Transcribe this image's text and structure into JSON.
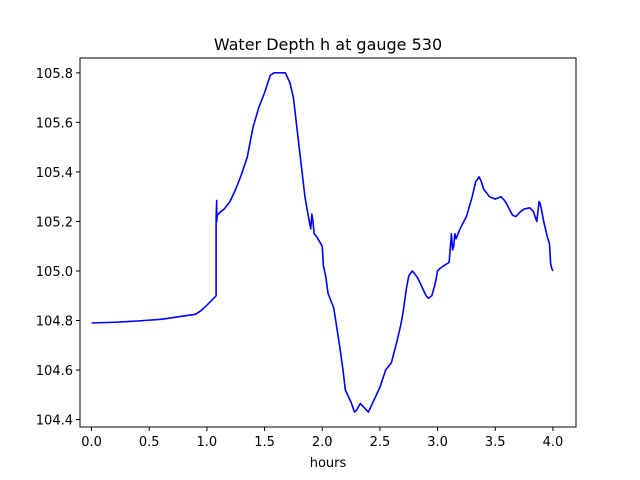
{
  "chart_data": {
    "type": "line",
    "title": "Water Depth h at gauge 530",
    "xlabel": "hours",
    "ylabel": "",
    "xlim": [
      -0.1,
      4.2
    ],
    "ylim": [
      104.37,
      105.86
    ],
    "grid": false,
    "legend": "none",
    "x_ticks": [
      0.0,
      0.5,
      1.0,
      1.5,
      2.0,
      2.5,
      3.0,
      3.5,
      4.0
    ],
    "x_tick_labels": [
      "0.0",
      "0.5",
      "1.0",
      "1.5",
      "2.0",
      "2.5",
      "3.0",
      "3.5",
      "4.0"
    ],
    "y_ticks": [
      104.4,
      104.6,
      104.8,
      105.0,
      105.2,
      105.4,
      105.6,
      105.8
    ],
    "y_tick_labels": [
      "104.4",
      "104.6",
      "104.8",
      "105.0",
      "105.2",
      "105.4",
      "105.6",
      "105.8"
    ],
    "series": [
      {
        "color": "#0000ff",
        "x": [
          0.0,
          0.2,
          0.4,
          0.6,
          0.65,
          0.75,
          0.9,
          0.95,
          1.0,
          1.05,
          1.08,
          1.08,
          1.085,
          1.085,
          1.09,
          1.12,
          1.15,
          1.2,
          1.25,
          1.3,
          1.35,
          1.4,
          1.45,
          1.5,
          1.55,
          1.58,
          1.62,
          1.68,
          1.72,
          1.75,
          1.8,
          1.85,
          1.88,
          1.9,
          1.91,
          1.92,
          1.93,
          1.95,
          2.0,
          2.01,
          2.03,
          2.05,
          2.1,
          2.15,
          2.18,
          2.2,
          2.25,
          2.28,
          2.3,
          2.33,
          2.35,
          2.38,
          2.4,
          2.42,
          2.45,
          2.48,
          2.5,
          2.55,
          2.6,
          2.65,
          2.68,
          2.7,
          2.73,
          2.75,
          2.78,
          2.8,
          2.83,
          2.85,
          2.9,
          2.92,
          2.95,
          2.98,
          3.0,
          3.02,
          3.05,
          3.1,
          3.12,
          3.13,
          3.14,
          3.15,
          3.16,
          3.2,
          3.25,
          3.3,
          3.33,
          3.36,
          3.38,
          3.4,
          3.45,
          3.5,
          3.55,
          3.58,
          3.6,
          3.65,
          3.68,
          3.72,
          3.75,
          3.8,
          3.83,
          3.86,
          3.88,
          3.89,
          3.9,
          3.92,
          3.95,
          3.97,
          3.98,
          3.99,
          4.0
        ],
        "y": [
          104.79,
          104.793,
          104.798,
          104.805,
          104.808,
          104.815,
          104.825,
          104.84,
          104.862,
          104.885,
          104.9,
          105.21,
          105.285,
          105.2,
          105.225,
          105.24,
          105.25,
          105.28,
          105.33,
          105.39,
          105.46,
          105.58,
          105.66,
          105.72,
          105.79,
          105.8,
          105.8,
          105.8,
          105.76,
          105.7,
          105.5,
          105.3,
          105.22,
          105.17,
          105.23,
          105.2,
          105.15,
          105.14,
          105.1,
          105.02,
          104.98,
          104.91,
          104.85,
          104.7,
          104.6,
          104.52,
          104.47,
          104.43,
          104.44,
          104.465,
          104.455,
          104.44,
          104.43,
          104.45,
          104.48,
          104.51,
          104.53,
          104.6,
          104.63,
          104.72,
          104.78,
          104.83,
          104.93,
          104.98,
          105.0,
          104.99,
          104.97,
          104.95,
          104.9,
          104.89,
          104.9,
          104.95,
          105.0,
          105.01,
          105.02,
          105.035,
          105.15,
          105.085,
          105.1,
          105.15,
          105.13,
          105.175,
          105.22,
          105.3,
          105.36,
          105.38,
          105.36,
          105.33,
          105.3,
          105.29,
          105.3,
          105.285,
          105.27,
          105.225,
          105.22,
          105.24,
          105.25,
          105.255,
          105.24,
          105.2,
          105.28,
          105.27,
          105.25,
          105.2,
          105.14,
          105.11,
          105.03,
          105.01,
          105.0
        ]
      }
    ]
  }
}
